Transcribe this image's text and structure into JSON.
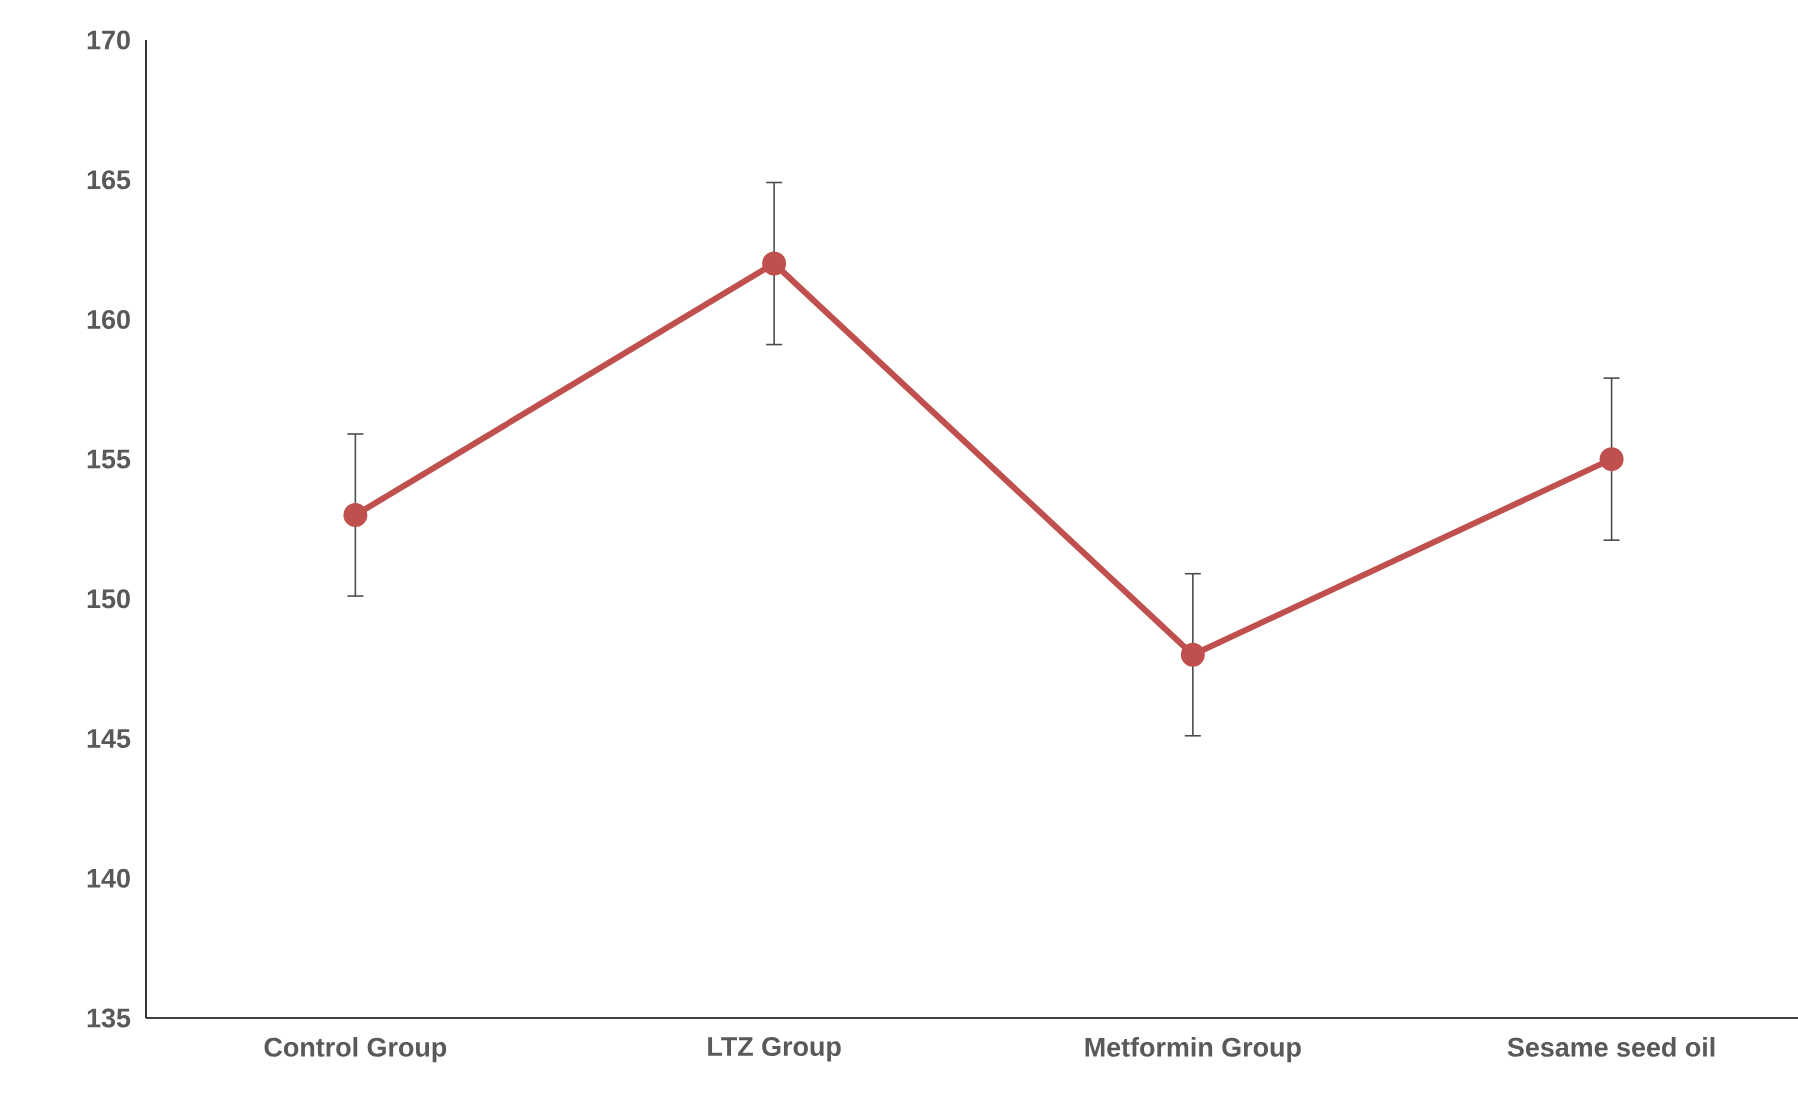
{
  "chart_data": {
    "type": "line",
    "categories": [
      "Control Group",
      "LTZ Group",
      "Metformin Group",
      "Sesame seed oil"
    ],
    "series": [
      {
        "color": "#c0504d",
        "values": [
          153,
          162,
          148,
          155
        ],
        "errors": [
          2.9,
          2.9,
          2.9,
          2.9
        ]
      }
    ],
    "ylim": [
      135,
      170
    ],
    "yticks": [
      135,
      140,
      145,
      150,
      155,
      160,
      165,
      170
    ],
    "marker": "circle",
    "line_style": "solid"
  }
}
